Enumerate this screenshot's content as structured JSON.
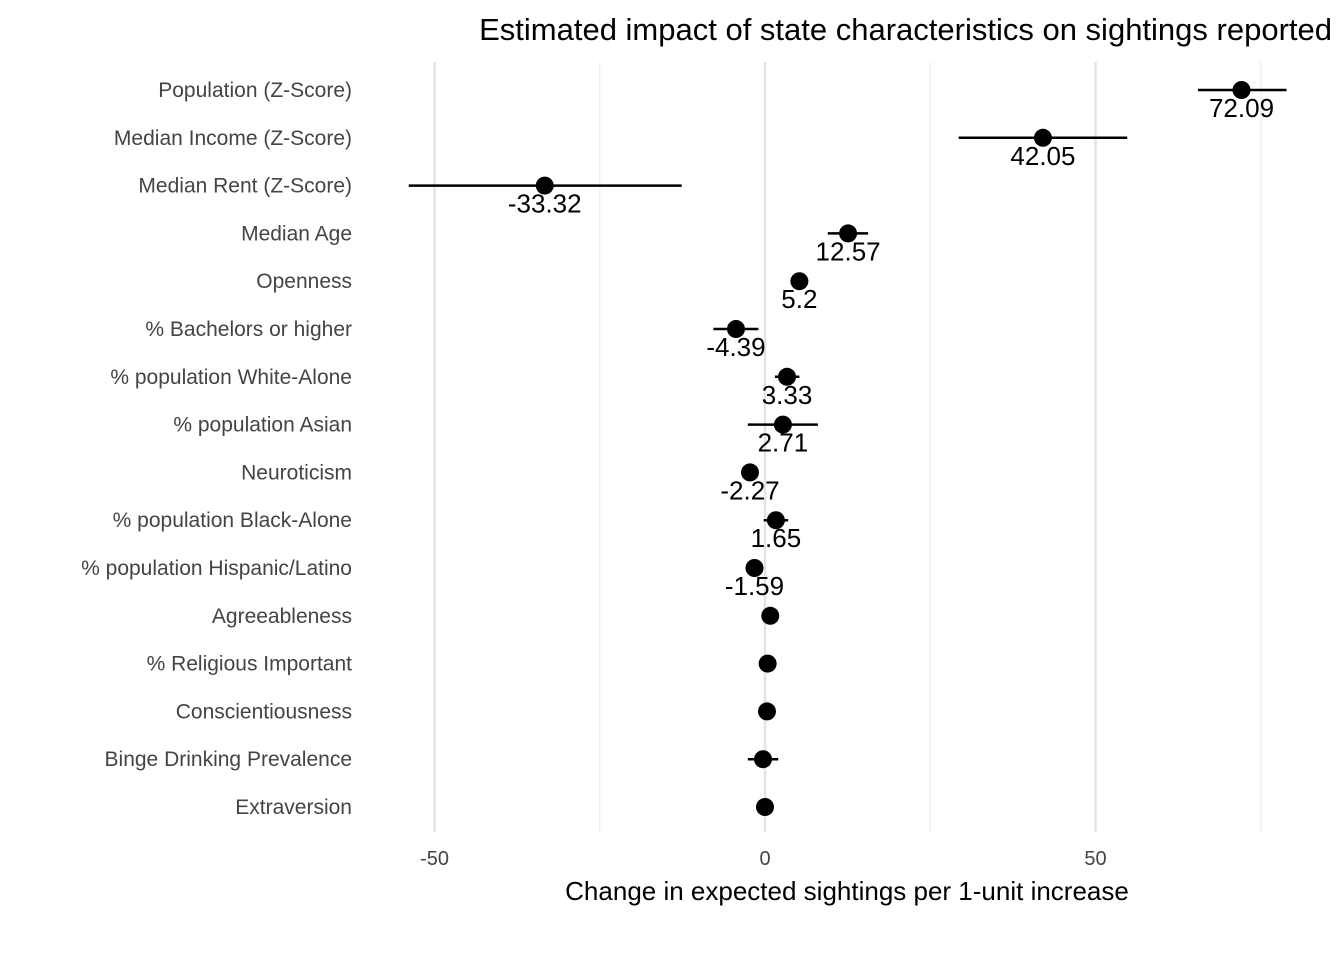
{
  "chart_data": {
    "type": "scatter",
    "title": "Estimated impact of state characteristics on sightings reported",
    "xlabel": "Change in expected sightings per 1-unit increase",
    "ylabel": "",
    "xlim": [
      -60,
      80
    ],
    "x_ticks": [
      -50,
      0,
      50
    ],
    "x_tick_labels": [
      "-50",
      "0",
      "50"
    ],
    "x_minor_ticks": [
      -25,
      25,
      75
    ],
    "grid": "vertical",
    "legend": "none",
    "point_color": "#000000",
    "rows": [
      {
        "label": "Population (Z-Score)",
        "estimate": 72.09,
        "lower": 65.5,
        "upper": 78.9,
        "value_label": "72.09"
      },
      {
        "label": "Median Income (Z-Score)",
        "estimate": 42.05,
        "lower": 29.3,
        "upper": 54.8,
        "value_label": "42.05"
      },
      {
        "label": "Median Rent (Z-Score)",
        "estimate": -33.32,
        "lower": -53.9,
        "upper": -12.6,
        "value_label": "-33.32"
      },
      {
        "label": "Median Age",
        "estimate": 12.57,
        "lower": 9.5,
        "upper": 15.6,
        "value_label": "12.57"
      },
      {
        "label": "Openness",
        "estimate": 5.2,
        "lower": 4.2,
        "upper": 6.2,
        "value_label": "5.2"
      },
      {
        "label": "% Bachelors or higher",
        "estimate": -4.39,
        "lower": -7.8,
        "upper": -1.0,
        "value_label": "-4.39"
      },
      {
        "label": "% population White-Alone",
        "estimate": 3.33,
        "lower": 1.5,
        "upper": 5.2,
        "value_label": "3.33"
      },
      {
        "label": "% population Asian",
        "estimate": 2.71,
        "lower": -2.6,
        "upper": 8.0,
        "value_label": "2.71"
      },
      {
        "label": "Neuroticism",
        "estimate": -2.27,
        "lower": -3.1,
        "upper": -1.4,
        "value_label": "-2.27"
      },
      {
        "label": "% population Black-Alone",
        "estimate": 1.65,
        "lower": -0.2,
        "upper": 3.5,
        "value_label": "1.65"
      },
      {
        "label": "% population Hispanic/Latino",
        "estimate": -1.59,
        "lower": -2.4,
        "upper": -0.8,
        "value_label": "-1.59"
      },
      {
        "label": "Agreeableness",
        "estimate": 0.8,
        "lower": 0.3,
        "upper": 1.3,
        "value_label": ""
      },
      {
        "label": "% Religious Important",
        "estimate": 0.4,
        "lower": 0.0,
        "upper": 0.8,
        "value_label": ""
      },
      {
        "label": "Conscientiousness",
        "estimate": 0.3,
        "lower": -0.1,
        "upper": 0.7,
        "value_label": ""
      },
      {
        "label": "Binge Drinking Prevalence",
        "estimate": -0.3,
        "lower": -2.6,
        "upper": 2.0,
        "value_label": ""
      },
      {
        "label": "Extraversion",
        "estimate": 0.0,
        "lower": -0.3,
        "upper": 0.3,
        "value_label": ""
      }
    ]
  }
}
